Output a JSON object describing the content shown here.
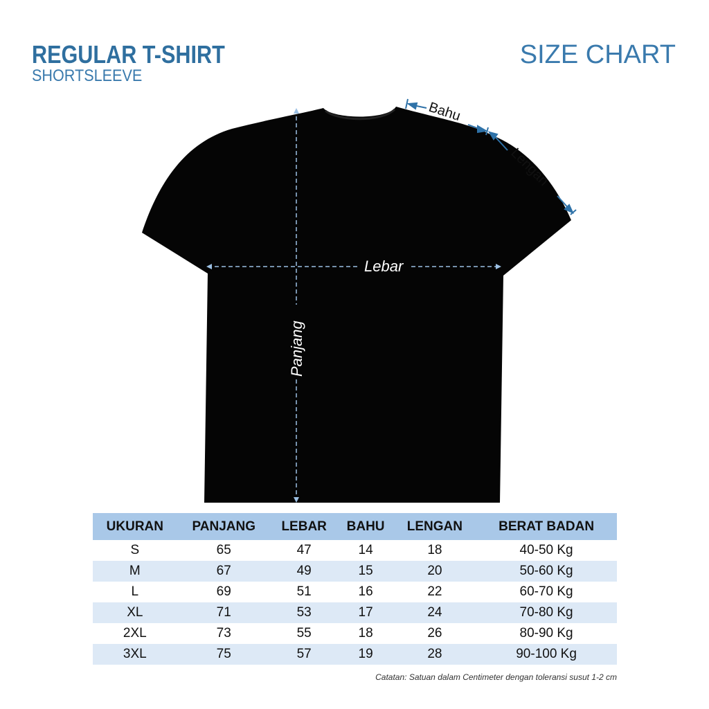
{
  "header": {
    "title": "REGULAR T-SHIRT",
    "subtitle": "SHORTSLEEVE",
    "chart_label": "SIZE CHART"
  },
  "diagram": {
    "labels": {
      "bahu": "Bahu",
      "lengan": "Lengan",
      "lebar": "Lebar",
      "panjang": "Panjang"
    },
    "colors": {
      "shirt": "#000000",
      "arrow": "#2f72a8",
      "dash": "#9cc0e4"
    }
  },
  "table": {
    "headers": [
      "UKURAN",
      "PANJANG",
      "LEBAR",
      "BAHU",
      "LENGAN",
      "BERAT BADAN"
    ],
    "rows": [
      [
        "S",
        "65",
        "47",
        "14",
        "18",
        "40-50 Kg"
      ],
      [
        "M",
        "67",
        "49",
        "15",
        "20",
        "50-60 Kg"
      ],
      [
        "L",
        "69",
        "51",
        "16",
        "22",
        "60-70 Kg"
      ],
      [
        "XL",
        "71",
        "53",
        "17",
        "24",
        "70-80 Kg"
      ],
      [
        "2XL",
        "73",
        "55",
        "18",
        "26",
        "80-90 Kg"
      ],
      [
        "3XL",
        "75",
        "57",
        "19",
        "28",
        "90-100 Kg"
      ]
    ],
    "colors": {
      "header": "#a9c8e8",
      "alt_row": "#dde9f6"
    }
  },
  "note": "Catatan: Satuan dalam Centimeter dengan toleransi susut 1-2 cm"
}
